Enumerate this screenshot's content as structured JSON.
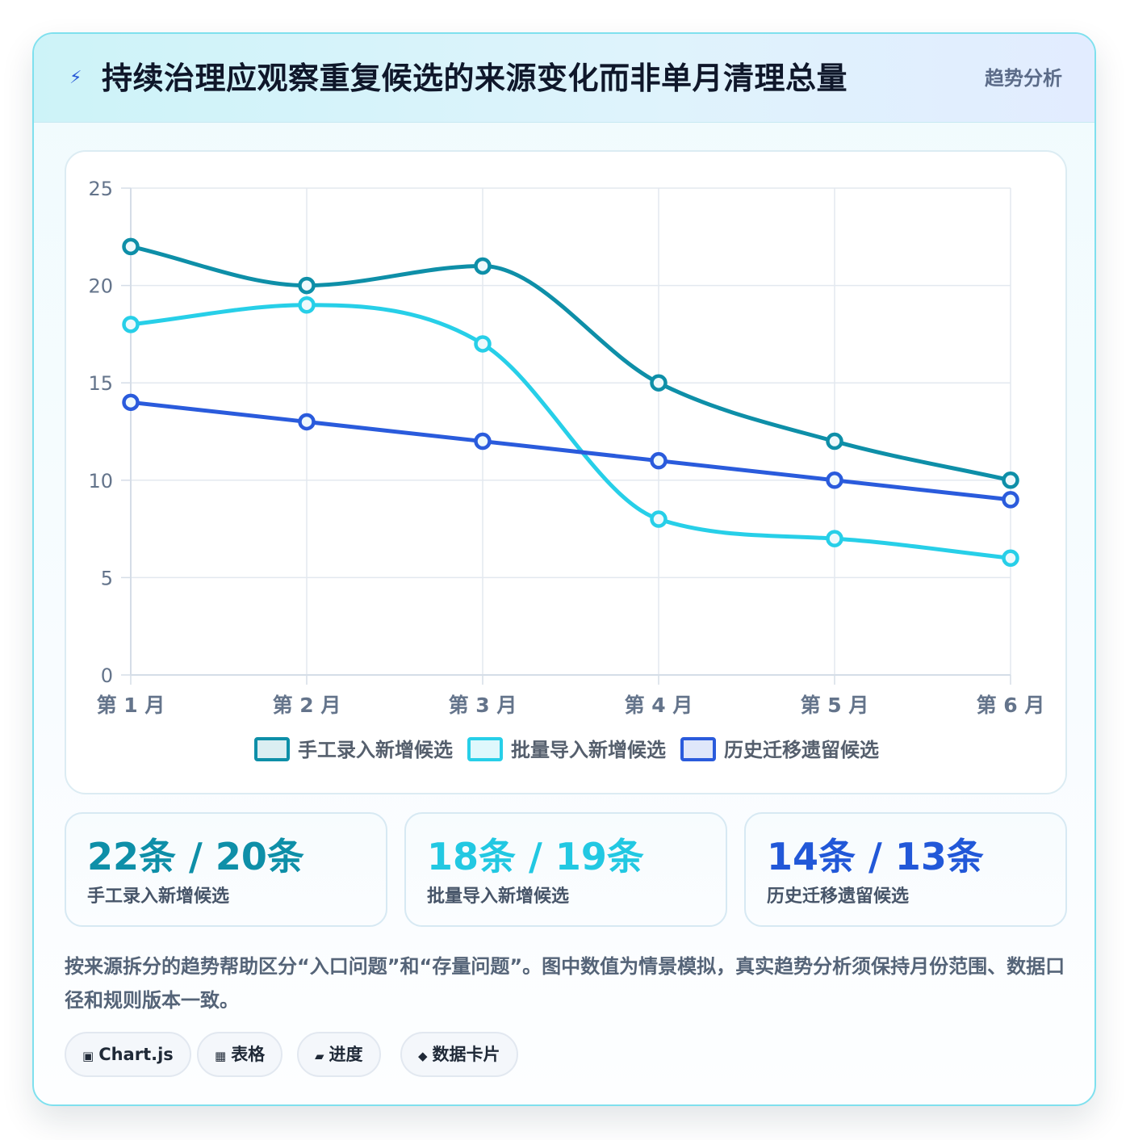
{
  "header": {
    "icon": "lightning-icon",
    "icon_glyph": "⚡",
    "title": "持续治理应观察重复候选的来源变化而非单月清理总量",
    "tag": "趋势分析"
  },
  "chart_data": {
    "type": "line",
    "categories": [
      "第 1 月",
      "第 2 月",
      "第 3 月",
      "第 4 月",
      "第 5 月",
      "第 6 月"
    ],
    "series": [
      {
        "name": "手工录入新增候选",
        "values": [
          22,
          20,
          21,
          15,
          12,
          10
        ],
        "color": "#0e8fa8"
      },
      {
        "name": "批量导入新增候选",
        "values": [
          18,
          19,
          17,
          8,
          7,
          6
        ],
        "color": "#27cfe8"
      },
      {
        "name": "历史迁移遗留候选",
        "values": [
          14,
          13,
          12,
          11,
          10,
          9
        ],
        "color": "#2a5bdc"
      }
    ],
    "ylim": [
      0,
      25
    ],
    "yticks": [
      "0",
      "5",
      "10",
      "15",
      "20",
      "25"
    ],
    "grid": true,
    "legend": "bottom"
  },
  "stats": [
    {
      "value": "22条 / 20条",
      "label": "手工录入新增候选",
      "color": "#0e8fa8"
    },
    {
      "value": "18条 / 19条",
      "label": "批量导入新增候选",
      "color": "#22c8e2"
    },
    {
      "value": "14条 / 13条",
      "label": "历史迁移遗留候选",
      "color": "#2258d8"
    }
  ],
  "note": "按来源拆分的趋势帮助区分“入口问题”和“存量问题”。图中数值为情景模拟，真实趋势分析须保持月份范围、数据口径和规则版本一致。",
  "pills": [
    {
      "icon": "chip-icon",
      "glyph": "▣",
      "label": "Chart.js"
    },
    {
      "icon": "table-icon",
      "glyph": "▦",
      "label": "表格"
    },
    {
      "icon": "progress-icon",
      "glyph": "▰",
      "label": "进度"
    },
    {
      "icon": "diamond-icon",
      "glyph": "◆",
      "label": "数据卡片"
    }
  ]
}
